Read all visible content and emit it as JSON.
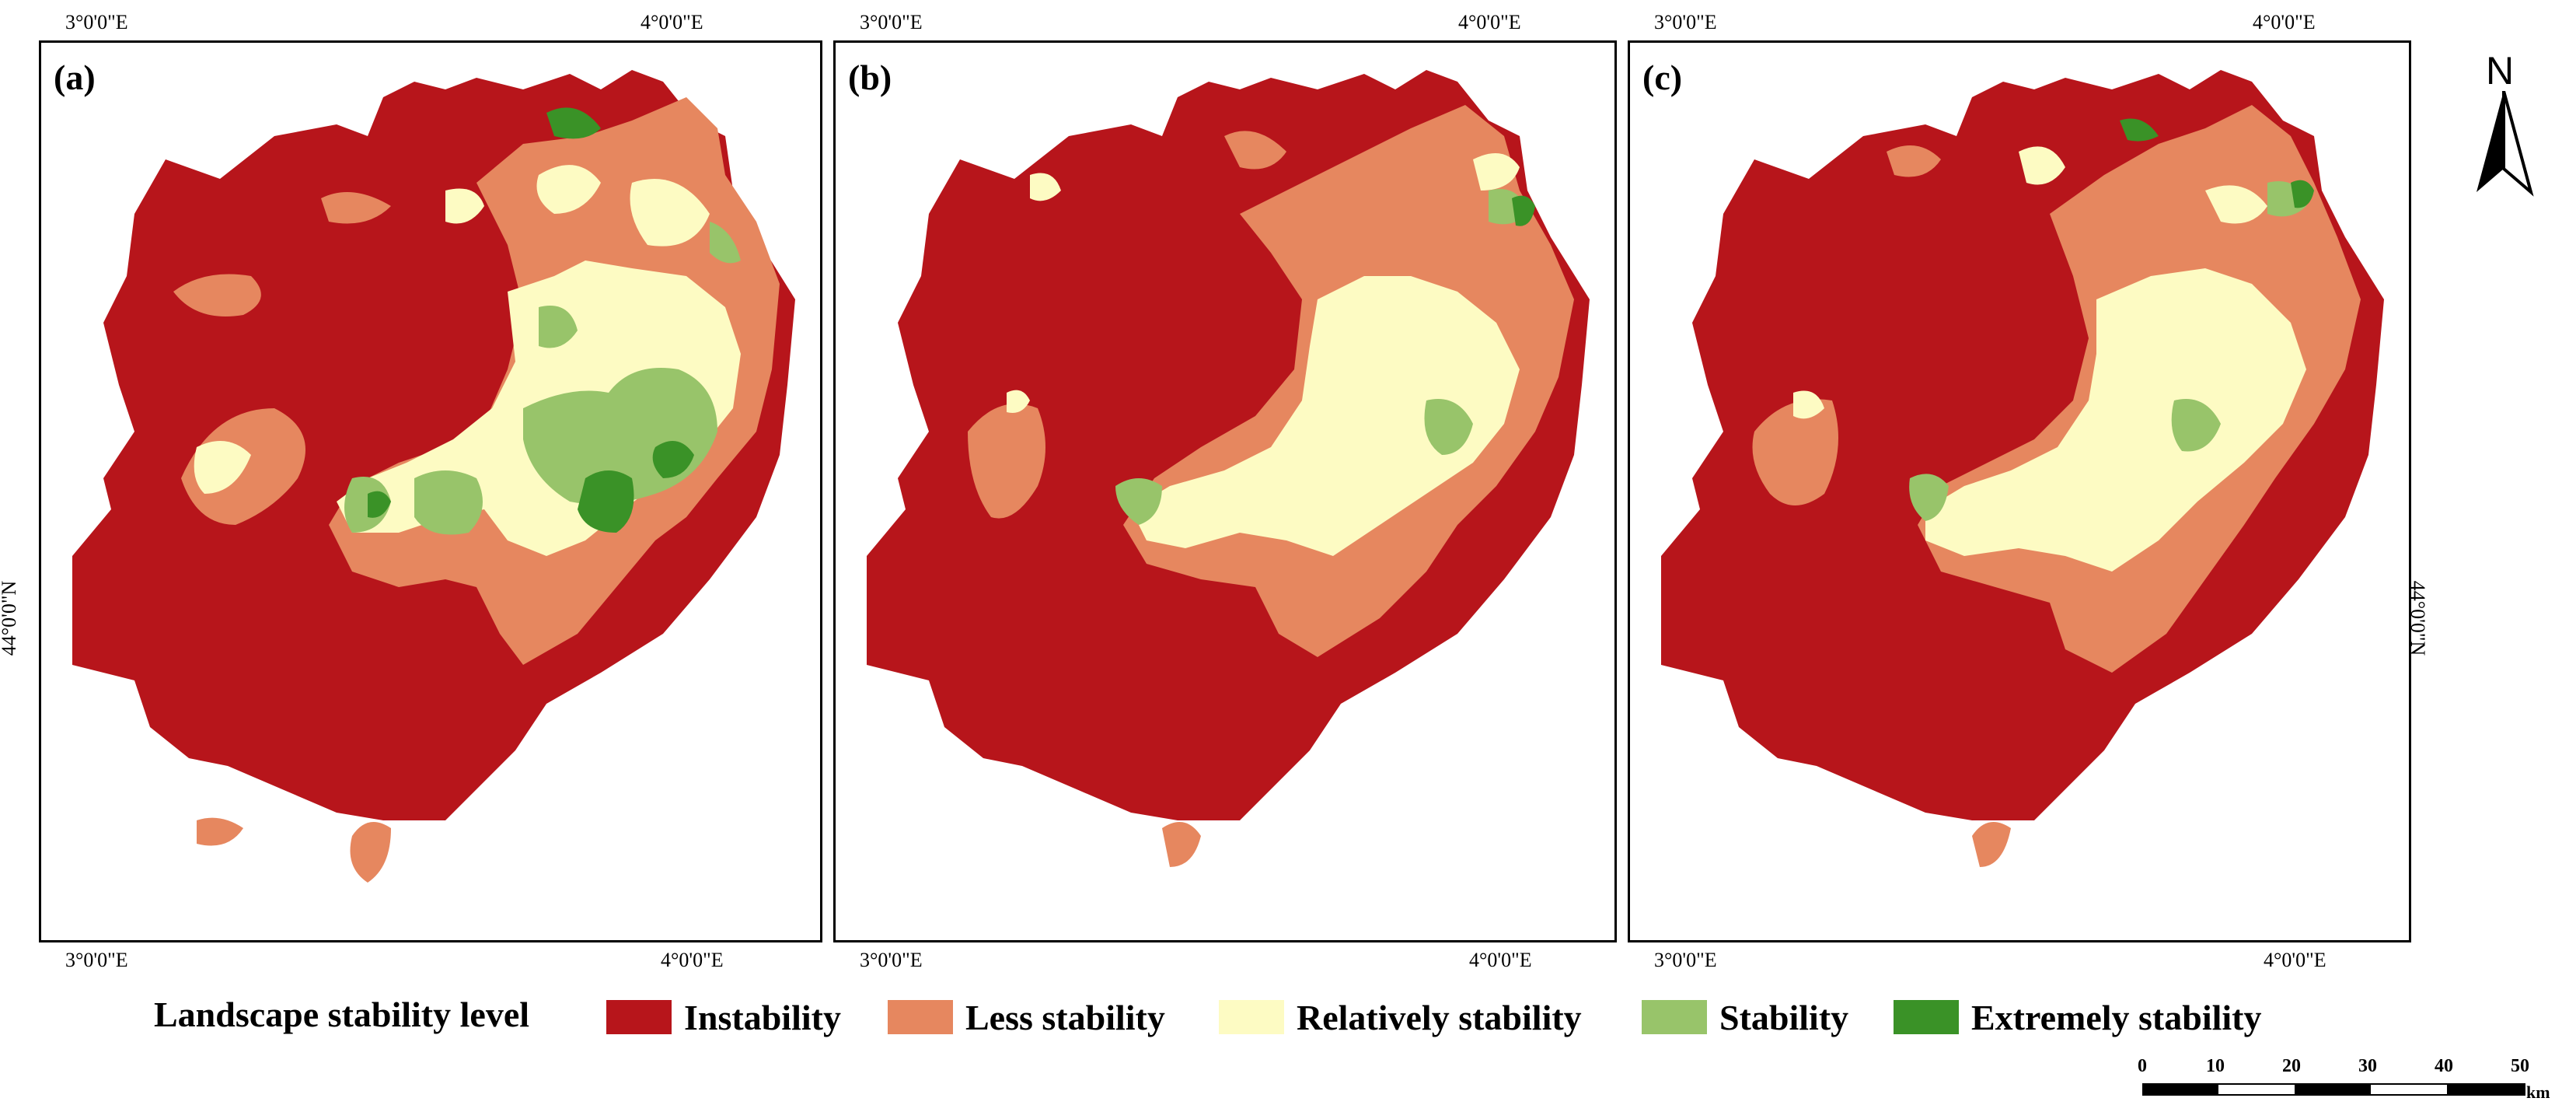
{
  "panels": [
    {
      "label": "(a)",
      "lon_top_left": "3°0'0\"E",
      "lon_top_right": "4°0'0\"E",
      "lon_bottom_left": "3°0'0\"E",
      "lon_bottom_right": "4°0'0\"E"
    },
    {
      "label": "(b)",
      "lon_top_left": "3°0'0\"E",
      "lon_top_right": "4°0'0\"E",
      "lon_bottom_left": "3°0'0\"E",
      "lon_bottom_right": "4°0'0\"E"
    },
    {
      "label": "(c)",
      "lon_top_left": "3°0'0\"E",
      "lon_top_right": "4°0'0\"E",
      "lon_bottom_left": "3°0'0\"E",
      "lon_bottom_right": "4°0'0\"E"
    }
  ],
  "lat_label": "44°0'0\"N",
  "legend": {
    "title": "Landscape stability level",
    "items": [
      {
        "label": "Instability",
        "color": "#b7151b"
      },
      {
        "label": "Less stability",
        "color": "#e6875f"
      },
      {
        "label": "Relatively stability",
        "color": "#fdfbc3"
      },
      {
        "label": "Stability",
        "color": "#98c46a"
      },
      {
        "label": "Extremely stability",
        "color": "#3a9227"
      }
    ]
  },
  "north_arrow": {
    "letter": "N"
  },
  "scale_bar": {
    "ticks": [
      "0",
      "10",
      "20",
      "30",
      "40",
      "50"
    ],
    "unit": "km"
  }
}
